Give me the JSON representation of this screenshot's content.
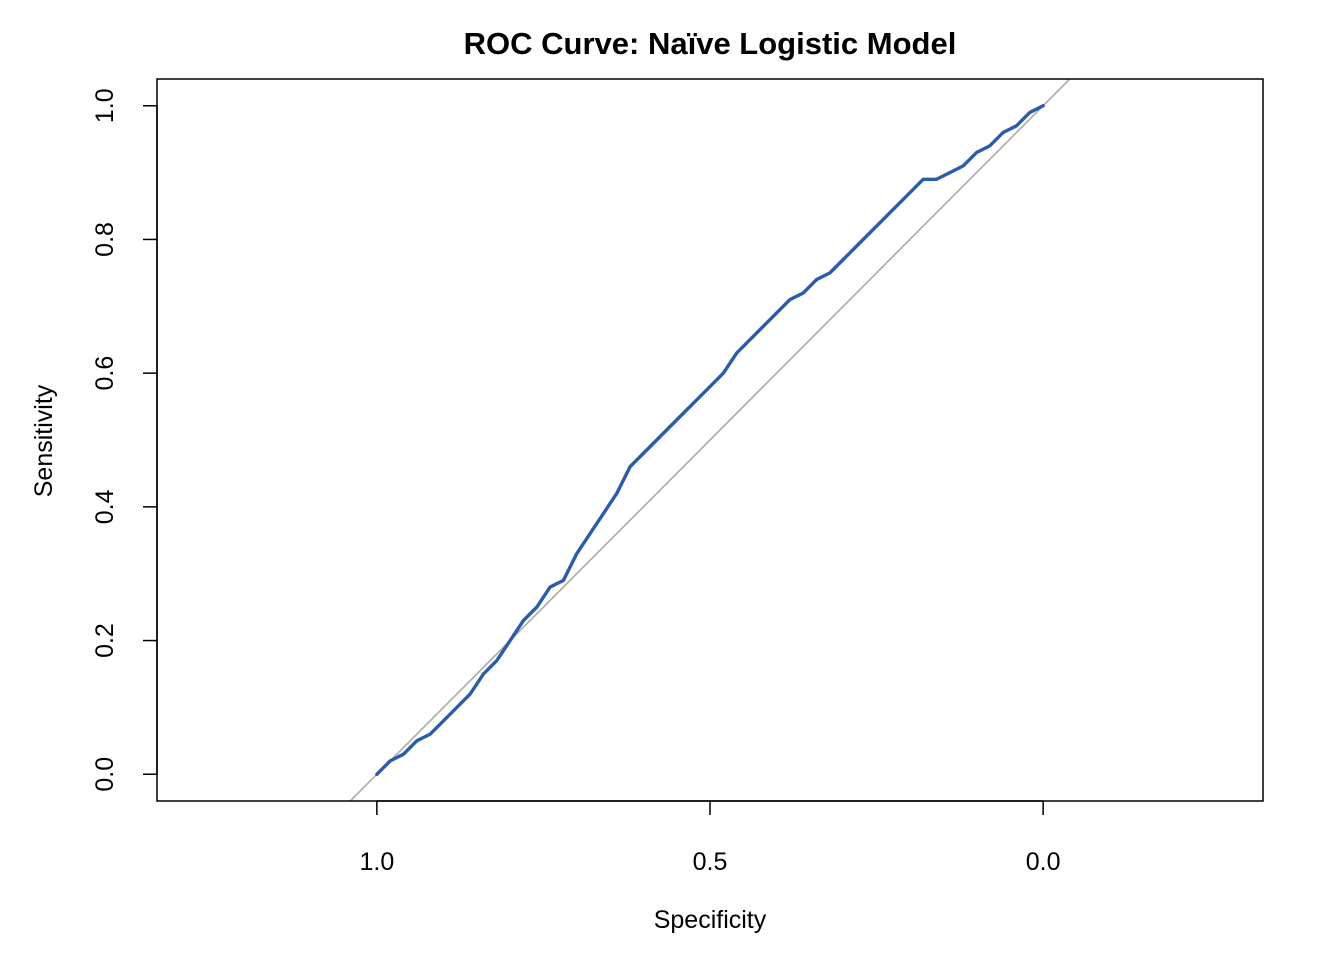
{
  "chart_data": {
    "type": "line",
    "title": "ROC Curve: Naïve Logistic Model",
    "xlabel": "Specificity",
    "ylabel": "Sensitivity",
    "x_reversed": true,
    "xlim": [
      1.33,
      -0.33
    ],
    "ylim": [
      -0.04,
      1.04
    ],
    "x_ticks": [
      1.0,
      0.5,
      0.0
    ],
    "x_tick_labels": [
      "1.0",
      "0.5",
      "0.0"
    ],
    "y_ticks": [
      0.0,
      0.2,
      0.4,
      0.6,
      0.8,
      1.0
    ],
    "y_tick_labels": [
      "0.0",
      "0.2",
      "0.4",
      "0.6",
      "0.8",
      "1.0"
    ],
    "grid": false,
    "series": [
      {
        "color": "#2a5ca8",
        "x": [
          1.0,
          0.98,
          0.96,
          0.94,
          0.92,
          0.9,
          0.88,
          0.86,
          0.84,
          0.82,
          0.8,
          0.78,
          0.76,
          0.74,
          0.72,
          0.7,
          0.68,
          0.66,
          0.64,
          0.62,
          0.6,
          0.58,
          0.56,
          0.54,
          0.52,
          0.5,
          0.48,
          0.46,
          0.44,
          0.42,
          0.4,
          0.38,
          0.36,
          0.34,
          0.32,
          0.3,
          0.28,
          0.26,
          0.24,
          0.22,
          0.2,
          0.18,
          0.16,
          0.14,
          0.12,
          0.1,
          0.08,
          0.06,
          0.04,
          0.02,
          0.0
        ],
        "y": [
          0.0,
          0.02,
          0.03,
          0.05,
          0.06,
          0.08,
          0.1,
          0.12,
          0.15,
          0.17,
          0.2,
          0.23,
          0.25,
          0.28,
          0.29,
          0.33,
          0.36,
          0.39,
          0.42,
          0.46,
          0.48,
          0.5,
          0.52,
          0.54,
          0.56,
          0.58,
          0.6,
          0.63,
          0.65,
          0.67,
          0.69,
          0.71,
          0.72,
          0.74,
          0.75,
          0.77,
          0.79,
          0.81,
          0.83,
          0.85,
          0.87,
          0.89,
          0.89,
          0.9,
          0.91,
          0.93,
          0.94,
          0.96,
          0.97,
          0.99,
          1.0
        ]
      }
    ],
    "reference_line": {
      "color": "#aaaaaa",
      "x": [
        1.0,
        0.0
      ],
      "y": [
        0.0,
        1.0
      ]
    }
  }
}
